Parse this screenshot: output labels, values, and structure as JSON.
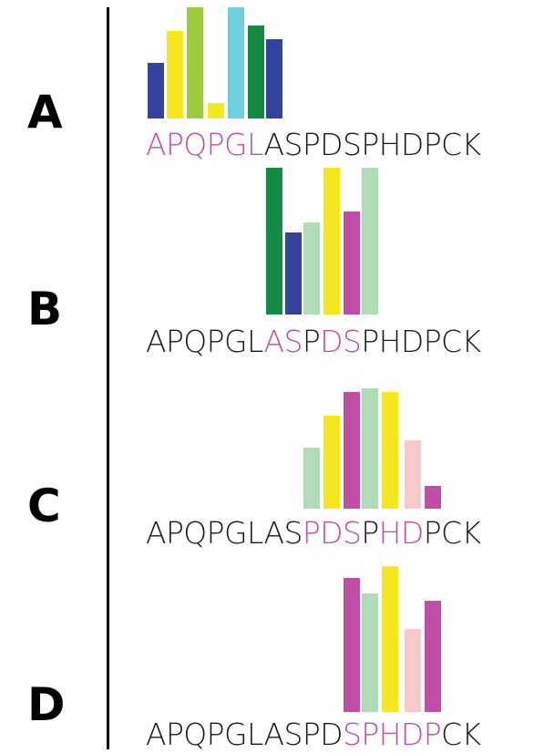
{
  "sequence": "APQPGLASPDSPHDPCK",
  "colors": {
    "highlight": "#c04ea6",
    "dark_blue": "#33449e",
    "yellow": "#f4e71c",
    "lime": "#9ccb3b",
    "cyan": "#6ecfe0",
    "dark_green": "#138b45",
    "light_green": "#b0dcb6",
    "magenta": "#c04ea6",
    "pink": "#f8c9c9"
  },
  "panels": [
    {
      "label": "A",
      "highlight": [
        0,
        1,
        2,
        3,
        4,
        5
      ],
      "bars": [
        {
          "residue": 0,
          "level": 0.5,
          "color": "dark_blue"
        },
        {
          "residue": 1,
          "level": 0.79,
          "color": "yellow"
        },
        {
          "residue": 2,
          "level": 1.0,
          "color": "lime"
        },
        {
          "residue": 3,
          "level": 0.14,
          "color": "yellow"
        },
        {
          "residue": 4,
          "level": 1.0,
          "color": "cyan"
        },
        {
          "residue": 5,
          "level": 0.84,
          "color": "dark_green"
        },
        {
          "residue": 6,
          "level": 0.71,
          "color": "dark_blue"
        }
      ]
    },
    {
      "label": "B",
      "highlight": [
        6,
        7,
        9,
        10
      ],
      "bars": [
        {
          "residue": 6,
          "level": 1.0,
          "color": "dark_green"
        },
        {
          "residue": 7,
          "level": 0.56,
          "color": "dark_blue"
        },
        {
          "residue": 8,
          "level": 0.63,
          "color": "light_green"
        },
        {
          "residue": 9,
          "level": 1.0,
          "color": "yellow"
        },
        {
          "residue": 10,
          "level": 0.7,
          "color": "magenta"
        },
        {
          "residue": 11,
          "level": 1.0,
          "color": "light_green"
        }
      ]
    },
    {
      "label": "C",
      "highlight": [
        8,
        9,
        10,
        12,
        13
      ],
      "bars": [
        {
          "residue": 8,
          "level": 0.51,
          "color": "light_green"
        },
        {
          "residue": 9,
          "level": 0.77,
          "color": "yellow"
        },
        {
          "residue": 10,
          "level": 0.97,
          "color": "magenta"
        },
        {
          "residue": 11,
          "level": 1.0,
          "color": "light_green"
        },
        {
          "residue": 12,
          "level": 0.97,
          "color": "yellow"
        },
        {
          "residue": 13,
          "level": 0.57,
          "color": "pink"
        },
        {
          "residue": 14,
          "level": 0.19,
          "color": "magenta"
        }
      ]
    },
    {
      "label": "D",
      "highlight": [
        10,
        11,
        12,
        13,
        14
      ],
      "bars": [
        {
          "residue": 10,
          "level": 0.92,
          "color": "magenta"
        },
        {
          "residue": 11,
          "level": 0.81,
          "color": "light_green"
        },
        {
          "residue": 12,
          "level": 1.0,
          "color": "yellow"
        },
        {
          "residue": 13,
          "level": 0.57,
          "color": "pink"
        },
        {
          "residue": 14,
          "level": 0.76,
          "color": "magenta"
        }
      ]
    }
  ]
}
